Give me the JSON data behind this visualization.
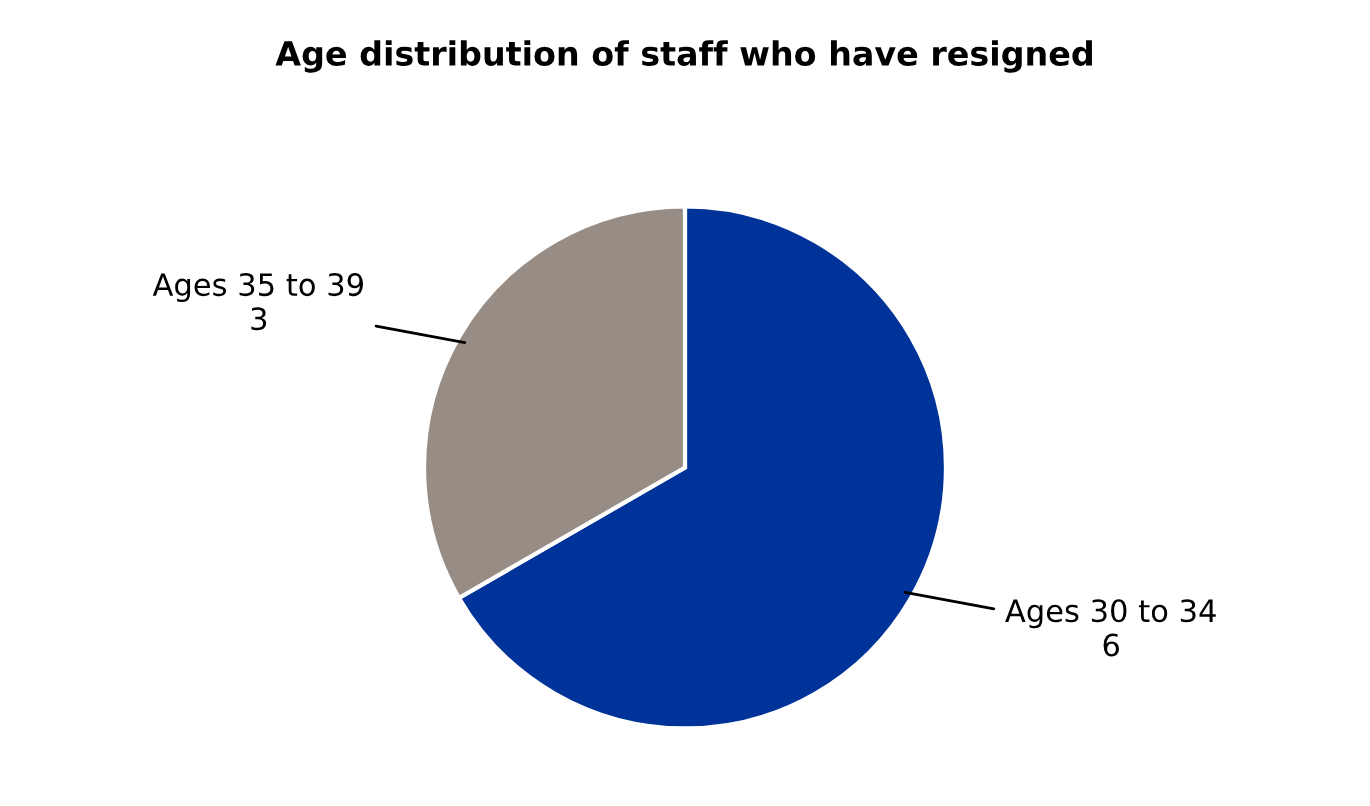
{
  "chart_data": {
    "type": "pie",
    "title": "Age distribution of staff who have resigned",
    "categories": [
      "Ages 30 to 34",
      "Ages 35 to 39"
    ],
    "values": [
      6,
      3
    ],
    "colors": [
      "#003399",
      "#978d85"
    ],
    "data_labels": true,
    "legend": false
  }
}
